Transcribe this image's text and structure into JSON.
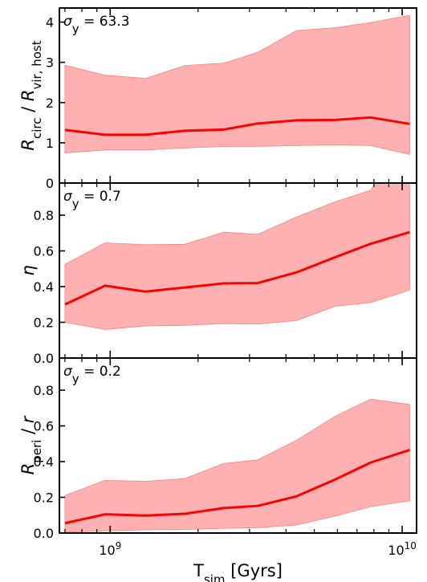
{
  "chart_data": [
    {
      "type": "area",
      "x": [
        700000000.0,
        960000000.0,
        1320000000.0,
        1800000000.0,
        2450000000.0,
        3200000000.0,
        4350000000.0,
        5900000000.0,
        7800000000.0,
        10600000000.0
      ],
      "series": [
        {
          "median": [
            1.32,
            1.2,
            1.2,
            1.3,
            1.33,
            1.48,
            1.56,
            1.57,
            1.63,
            1.47
          ],
          "upper": [
            2.93,
            2.68,
            2.6,
            2.92,
            2.98,
            3.25,
            3.79,
            3.86,
            3.99,
            4.17
          ],
          "lower": [
            0.75,
            0.82,
            0.82,
            0.87,
            0.91,
            0.91,
            0.93,
            0.95,
            0.93,
            0.71
          ]
        }
      ],
      "annotation": "σ_y = 63.3",
      "ylabel_main": "R",
      "ylabel_sub1": "circ",
      "ylabel_mid": " / R",
      "ylabel_sub2": "vir, host",
      "ylim": [
        0,
        4.35
      ],
      "yticks": [
        "0",
        "1",
        "2",
        "3",
        "4"
      ],
      "color": "#ff0000",
      "fill_color": "#ffb0b0"
    },
    {
      "type": "area",
      "x": [
        700000000.0,
        960000000.0,
        1320000000.0,
        1800000000.0,
        2450000000.0,
        3200000000.0,
        4350000000.0,
        5900000000.0,
        7800000000.0,
        10600000000.0
      ],
      "series": [
        {
          "median": [
            0.3,
            0.405,
            0.372,
            0.395,
            0.418,
            0.42,
            0.48,
            0.565,
            0.64,
            0.705
          ],
          "upper": [
            0.525,
            0.645,
            0.635,
            0.637,
            0.705,
            0.693,
            0.79,
            0.875,
            0.94,
            1.25
          ],
          "lower": [
            0.2,
            0.16,
            0.18,
            0.183,
            0.193,
            0.19,
            0.21,
            0.29,
            0.31,
            0.38
          ]
        }
      ],
      "annotation": "σ_y = 0.7",
      "ylabel_main": "η",
      "ylim": [
        0,
        0.98
      ],
      "yticks": [
        "0.0",
        "0.2",
        "0.4",
        "0.6",
        "0.8"
      ],
      "color": "#ff0000",
      "fill_color": "#ffb0b0"
    },
    {
      "type": "area",
      "x": [
        700000000.0,
        960000000.0,
        1320000000.0,
        1800000000.0,
        2450000000.0,
        3200000000.0,
        4350000000.0,
        5900000000.0,
        7800000000.0,
        10600000000.0
      ],
      "series": [
        {
          "median": [
            0.055,
            0.105,
            0.098,
            0.108,
            0.14,
            0.152,
            0.206,
            0.3,
            0.395,
            0.465
          ],
          "upper": [
            0.21,
            0.295,
            0.29,
            0.305,
            0.39,
            0.41,
            0.52,
            0.655,
            0.75,
            0.72
          ],
          "lower": [
            0.005,
            0.012,
            0.018,
            0.02,
            0.026,
            0.03,
            0.045,
            0.095,
            0.148,
            0.18
          ]
        }
      ],
      "annotation": "σ_y = 0.2",
      "ylabel_main": "R",
      "ylabel_sub1": "peri",
      "ylabel_mid": " / r",
      "ylim": [
        0,
        0.98
      ],
      "yticks": [
        "0.0",
        "0.2",
        "0.4",
        "0.6",
        "0.8"
      ],
      "color": "#ff0000",
      "fill_color": "#ffb0b0"
    }
  ],
  "x_axis": {
    "label_main": "T",
    "label_sub": "sim",
    "label_unit": " [Gyrs]",
    "scale": "log",
    "xlim": [
      670000000.0,
      11200000000.0
    ],
    "major_ticks": [
      1000000000.0,
      10000000000.0
    ],
    "major_tick_labels": [
      {
        "base": "10",
        "exp": "9"
      },
      {
        "base": "10",
        "exp": "10"
      }
    ],
    "minor_ticks": [
      700000000.0,
      800000000.0,
      900000000.0,
      2000000000.0,
      3000000000.0,
      4000000000.0,
      5000000000.0,
      6000000000.0,
      7000000000.0,
      8000000000.0,
      9000000000.0
    ]
  }
}
